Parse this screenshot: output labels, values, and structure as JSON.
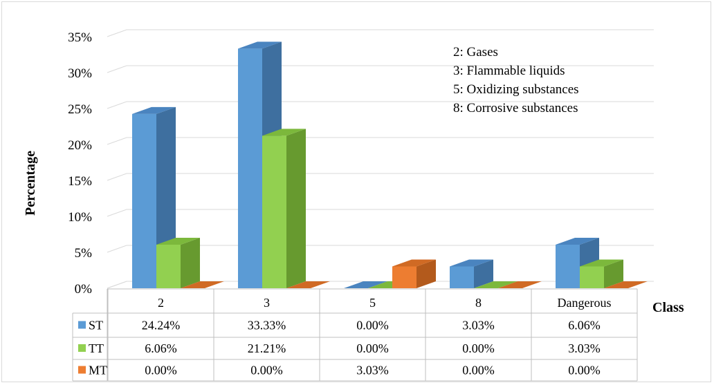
{
  "chart_data": {
    "type": "bar",
    "title": "",
    "xlabel": "Class",
    "ylabel": "Percentage",
    "ylim": [
      0,
      35
    ],
    "y_ticks": [
      "0%",
      "5%",
      "10%",
      "15%",
      "20%",
      "25%",
      "30%",
      "35%"
    ],
    "categories": [
      "2",
      "3",
      "5",
      "8",
      "Dangerous"
    ],
    "series": [
      {
        "name": "ST",
        "values": [
          24.24,
          33.33,
          0.0,
          3.03,
          6.06
        ],
        "labels": [
          "24.24%",
          "33.33%",
          "0.00%",
          "3.03%",
          "6.06%"
        ],
        "color": "#5b9bd5",
        "side": "#3e6f9f",
        "top": "#4a84bf"
      },
      {
        "name": "TT",
        "values": [
          6.06,
          21.21,
          0.0,
          0.0,
          3.03
        ],
        "labels": [
          "6.06%",
          "21.21%",
          "0.00%",
          "0.00%",
          "3.03%"
        ],
        "color": "#92d050",
        "side": "#679a2f",
        "top": "#7cb83c"
      },
      {
        "name": "MT",
        "values": [
          0.0,
          0.0,
          3.03,
          0.0,
          0.0
        ],
        "labels": [
          "0.00%",
          "0.00%",
          "3.03%",
          "0.00%",
          "0.00%"
        ],
        "color": "#ed7d31",
        "side": "#b35a1c",
        "top": "#d06a24"
      }
    ],
    "annotations": [
      "2: Gases",
      "3: Flammable liquids",
      "5: Oxidizing substances",
      "8: Corrosive substances"
    ],
    "grid": true,
    "legend": "data-table"
  }
}
